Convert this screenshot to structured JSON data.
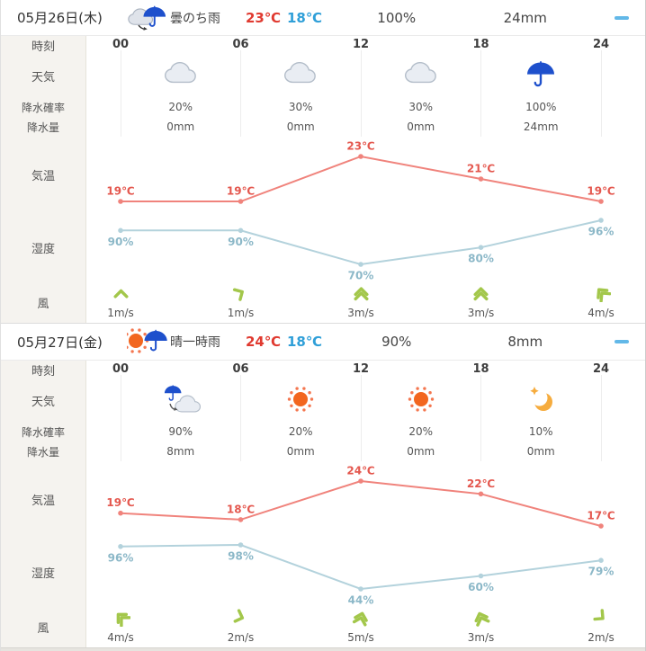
{
  "row_labels": {
    "time": "時刻",
    "weather": "天気",
    "pop": "降水確率",
    "amount": "降水量",
    "temp": "気温",
    "humidity": "湿度",
    "wind": "風"
  },
  "units": {
    "temp": "℃",
    "humidity": "%"
  },
  "colors": {
    "temp_line": "#f0837c",
    "temp_label": "#e4574e",
    "humidity_line": "#b3d2dc",
    "humidity_label": "#8cb8c8",
    "high": "#e03a30",
    "low": "#2f9fd8",
    "wind_green": "#a3c74b",
    "collapse": "#62b8e8",
    "umbrella_blue": "#1e50cc",
    "sun_orange": "#f2661f",
    "moon_yellow": "#f6ac3e"
  },
  "panels": [
    {
      "date": "05月26日(木)",
      "summary": "曇のち雨",
      "summary_icon": "cloud-umbrella",
      "high": "23℃",
      "low": "18℃",
      "pop": "100%",
      "precip": "24mm",
      "times": [
        "00",
        "06",
        "12",
        "18",
        "24"
      ],
      "blocks": [
        {
          "icon": "cloudy",
          "pop": "20%",
          "amount": "0mm"
        },
        {
          "icon": "cloudy",
          "pop": "30%",
          "amount": "0mm"
        },
        {
          "icon": "cloudy",
          "pop": "30%",
          "amount": "0mm"
        },
        {
          "icon": "rain",
          "pop": "100%",
          "amount": "24mm"
        }
      ],
      "temps": [
        19,
        19,
        23,
        21,
        19
      ],
      "humidity": [
        90,
        90,
        70,
        80,
        96
      ],
      "wind": [
        {
          "speed": "1m/s",
          "dir": 0
        },
        {
          "speed": "1m/s",
          "dir": 60
        },
        {
          "speed": "3m/s",
          "dir": 0
        },
        {
          "speed": "3m/s",
          "dir": 0
        },
        {
          "speed": "4m/s",
          "dir": -40
        }
      ]
    },
    {
      "date": "05月27日(金)",
      "summary": "晴一時雨",
      "summary_icon": "sun-umbrella",
      "high": "24℃",
      "low": "18℃",
      "pop": "90%",
      "precip": "8mm",
      "times": [
        "00",
        "06",
        "12",
        "18",
        "24"
      ],
      "blocks": [
        {
          "icon": "rain-then-cloudy",
          "pop": "90%",
          "amount": "8mm"
        },
        {
          "icon": "sunny",
          "pop": "20%",
          "amount": "0mm"
        },
        {
          "icon": "sunny",
          "pop": "20%",
          "amount": "0mm"
        },
        {
          "icon": "clear-night",
          "pop": "10%",
          "amount": "0mm"
        }
      ],
      "temps": [
        19,
        18,
        24,
        22,
        17
      ],
      "humidity": [
        96,
        98,
        44,
        60,
        79
      ],
      "wind": [
        {
          "speed": "4m/s",
          "dir": -45
        },
        {
          "speed": "2m/s",
          "dir": 110
        },
        {
          "speed": "5m/s",
          "dir": 15
        },
        {
          "speed": "3m/s",
          "dir": -20
        },
        {
          "speed": "2m/s",
          "dir": 130
        }
      ]
    }
  ]
}
